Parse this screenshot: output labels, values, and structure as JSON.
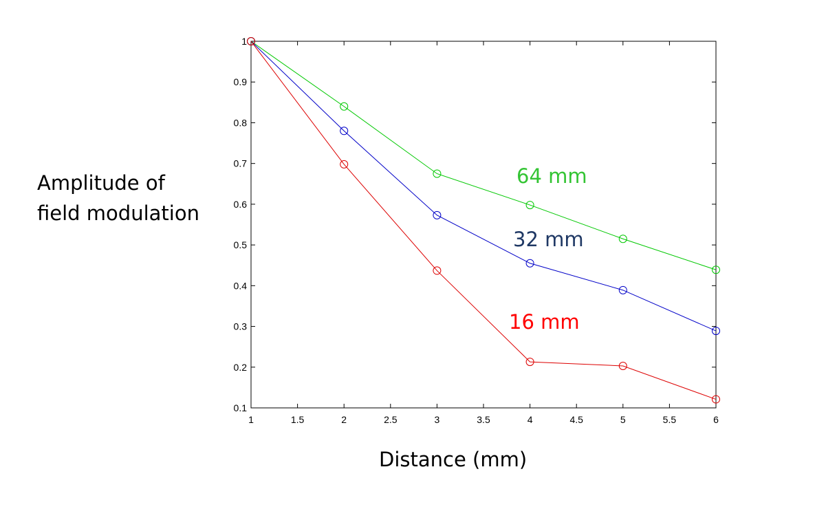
{
  "chart_data": {
    "type": "line",
    "title": "",
    "xlabel": "Distance (mm)",
    "ylabel": "Amplitude of\nfield modulation",
    "xlim": [
      1,
      6
    ],
    "ylim": [
      0.1,
      1
    ],
    "xticks": [
      1,
      1.5,
      2,
      2.5,
      3,
      3.5,
      4,
      4.5,
      5,
      5.5,
      6
    ],
    "yticks": [
      0.1,
      0.2,
      0.3,
      0.4,
      0.5,
      0.6,
      0.7,
      0.8,
      0.9,
      1
    ],
    "grid": false,
    "marker": "circle",
    "x": [
      1,
      2,
      3,
      4,
      5,
      6
    ],
    "series": [
      {
        "name": "64 mm",
        "color": "#00c800",
        "label_color": "#33c433",
        "values": [
          1.0,
          0.84,
          0.675,
          0.598,
          0.515,
          0.439
        ]
      },
      {
        "name": "32 mm",
        "color": "#0000c8",
        "label_color": "#1f3864",
        "values": [
          1.0,
          0.78,
          0.573,
          0.455,
          0.389,
          0.289
        ]
      },
      {
        "name": "16 mm",
        "color": "#dd0000",
        "label_color": "#ff0000",
        "values": [
          1.0,
          0.698,
          0.437,
          0.213,
          0.203,
          0.121
        ]
      }
    ]
  }
}
